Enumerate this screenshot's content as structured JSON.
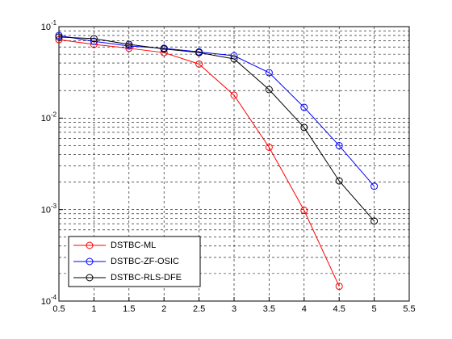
{
  "chart_data": {
    "type": "line",
    "series": [
      {
        "name": "DSTBC-ML",
        "color": "#ff0000",
        "x": [
          0.5,
          1,
          1.5,
          2,
          2.5,
          3,
          3.5,
          4,
          4.5
        ],
        "values": [
          0.072,
          0.064,
          0.058,
          0.052,
          0.039,
          0.0178,
          0.0048,
          0.00098,
          0.000145
        ]
      },
      {
        "name": "DSTBC-ZF-OSIC",
        "color": "#0000ff",
        "x": [
          0.5,
          1,
          1.5,
          2,
          2.5,
          3,
          3.5,
          4,
          4.5,
          5
        ],
        "values": [
          0.08,
          0.069,
          0.0614,
          0.058,
          0.053,
          0.048,
          0.0314,
          0.0131,
          0.005,
          0.0018
        ]
      },
      {
        "name": "DSTBC-RLS-DFE",
        "color": "#000000",
        "x": [
          0.5,
          1,
          1.5,
          2,
          2.5,
          3,
          3.5,
          4,
          4.5,
          5
        ],
        "values": [
          0.077,
          0.074,
          0.064,
          0.057,
          0.052,
          0.0444,
          0.0205,
          0.0079,
          0.00206,
          0.00075
        ]
      }
    ],
    "xlim": [
      0.5,
      5.5
    ],
    "xticks": [
      0.5,
      1,
      1.5,
      2,
      2.5,
      3,
      3.5,
      4,
      4.5,
      5,
      5.5
    ],
    "ylim": [
      0.0001,
      0.1
    ],
    "log_y": true,
    "yticks": [
      {
        "value": 0.0001,
        "label": "10",
        "exponent": "-4"
      },
      {
        "value": 0.001,
        "label": "10",
        "exponent": "-3"
      },
      {
        "value": 0.01,
        "label": "10",
        "exponent": "-2"
      },
      {
        "value": 0.1,
        "label": "10",
        "exponent": "-1"
      }
    ],
    "grid": true,
    "minor_grid": true,
    "legend": "southwest",
    "marker": "circle"
  }
}
